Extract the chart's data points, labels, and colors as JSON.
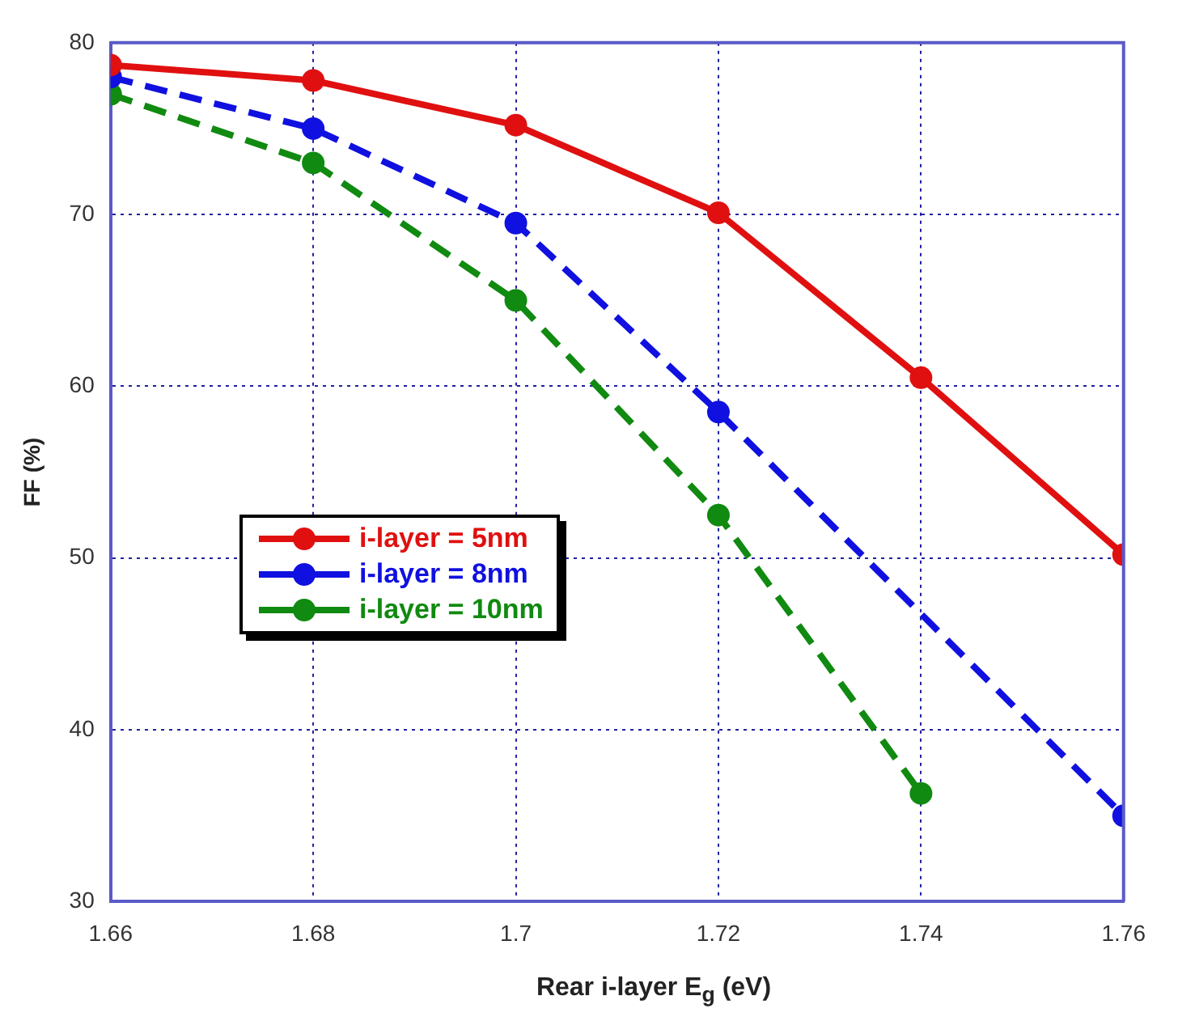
{
  "chart_data": {
    "type": "line",
    "xlabel": "Rear i-layer E$_{g}$ (eV)",
    "ylabel": "FF (%)",
    "x": [
      1.66,
      1.68,
      1.7,
      1.72,
      1.74,
      1.76
    ],
    "series": [
      {
        "name": "i-layer = 5nm",
        "color": "#e01010",
        "line_style": "solid",
        "values": [
          78.7,
          77.8,
          75.2,
          70.1,
          60.5,
          50.2
        ]
      },
      {
        "name": "i-layer = 8nm",
        "color": "#1010e0",
        "line_style": "dashed",
        "values": [
          78.0,
          75.0,
          69.5,
          58.5,
          null,
          35.0
        ]
      },
      {
        "name": "i-layer = 10nm",
        "color": "#108a10",
        "line_style": "dashed",
        "values": [
          77.0,
          73.0,
          65.0,
          52.5,
          36.3,
          null
        ]
      }
    ],
    "xlim": [
      1.66,
      1.76
    ],
    "xticks": [
      1.66,
      1.68,
      1.7,
      1.72,
      1.74,
      1.76
    ],
    "ylim": [
      30,
      80
    ],
    "yticks": [
      30,
      40,
      50,
      60,
      70,
      80
    ],
    "grid": true,
    "legend": "left",
    "marker": "circle"
  }
}
